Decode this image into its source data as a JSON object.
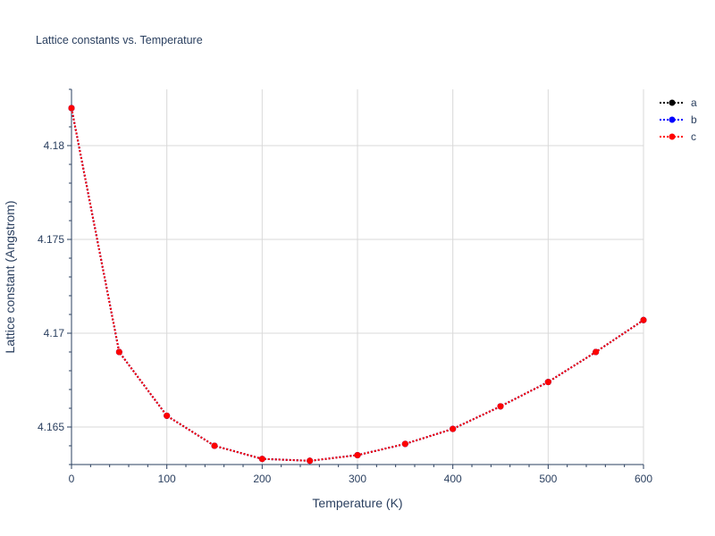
{
  "chart_data": {
    "type": "line",
    "title": "Lattice constants vs. Temperature",
    "xlabel": "Temperature (K)",
    "ylabel": "Lattice constant (Angstrom)",
    "xlim": [
      0,
      600
    ],
    "ylim": [
      4.163,
      4.183
    ],
    "x_ticks": [
      0,
      100,
      200,
      300,
      400,
      500,
      600
    ],
    "y_ticks": [
      4.165,
      4.17,
      4.175,
      4.18
    ],
    "x_tick_labels": [
      "0",
      "100",
      "200",
      "300",
      "400",
      "500",
      "600"
    ],
    "y_tick_labels": [
      "4.165",
      "4.17",
      "4.175",
      "4.18"
    ],
    "grid": true,
    "legend_position": "top-right",
    "line_style": "dotted",
    "x": [
      0,
      50,
      100,
      150,
      200,
      250,
      300,
      350,
      400,
      450,
      500,
      550,
      600
    ],
    "series": [
      {
        "name": "a",
        "color": "#000000",
        "values": [
          4.182,
          4.169,
          4.1656,
          4.164,
          4.1633,
          4.1632,
          4.1635,
          4.1641,
          4.1649,
          4.1661,
          4.1674,
          4.169,
          4.1707
        ]
      },
      {
        "name": "b",
        "color": "#0000ff",
        "values": [
          4.182,
          4.169,
          4.1656,
          4.164,
          4.1633,
          4.1632,
          4.1635,
          4.1641,
          4.1649,
          4.1661,
          4.1674,
          4.169,
          4.1707
        ]
      },
      {
        "name": "c",
        "color": "#ff0000",
        "values": [
          4.182,
          4.169,
          4.1656,
          4.164,
          4.1633,
          4.1632,
          4.1635,
          4.1641,
          4.1649,
          4.1661,
          4.1674,
          4.169,
          4.1707
        ]
      }
    ]
  },
  "colors": {
    "grid": "#d9d9d9",
    "axis": "#2a3f5f",
    "text": "#2a3f5f",
    "background": "#ffffff"
  }
}
